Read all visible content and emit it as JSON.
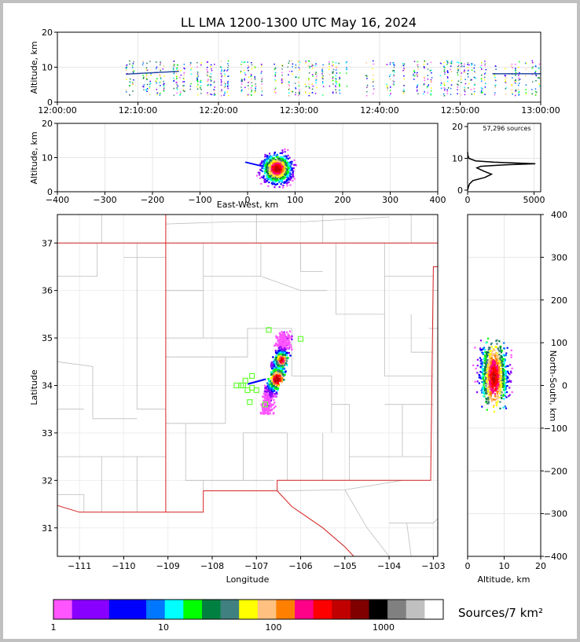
{
  "title": "LL LMA 1200-1300 UTC May 16, 2024",
  "time_panel": {
    "ylabel": "Altitude, km",
    "yticks": [
      "0",
      "10",
      "20"
    ],
    "xticks": [
      "12:00:00",
      "12:10:00",
      "12:20:00",
      "12:30:00",
      "12:40:00",
      "12:50:00",
      "13:00:00"
    ]
  },
  "ew_panel": {
    "ylabel": "Altitude, km",
    "xlabel": "East-West, km",
    "yticks": [
      "0",
      "10",
      "20"
    ],
    "xticks": [
      "−400",
      "−300",
      "−200",
      "−100",
      "0",
      "100",
      "200",
      "300",
      "400"
    ]
  },
  "hist_panel": {
    "count_label": "57,296 sources",
    "yticks": [
      "0",
      "10",
      "20"
    ],
    "xticks": [
      "0",
      "5000"
    ]
  },
  "map_panel": {
    "xlabel": "Longitude",
    "ylabel": "Latitude",
    "xticks": [
      "−111",
      "−110",
      "−109",
      "−108",
      "−107",
      "−106",
      "−105",
      "−104",
      "−103"
    ],
    "yticks": [
      "31",
      "32",
      "33",
      "34",
      "35",
      "36",
      "37"
    ]
  },
  "ns_panel": {
    "xlabel": "Altitude, km",
    "ylabel": "North-South, km",
    "xticks": [
      "0",
      "10",
      "20"
    ],
    "yticks": [
      "−400",
      "−300",
      "−200",
      "−100",
      "0",
      "100",
      "200",
      "300",
      "400"
    ]
  },
  "colorbar": {
    "label": "Sources/7 km²",
    "ticks": [
      "1",
      "10",
      "100",
      "1000"
    ],
    "colors": [
      "#ff55ff",
      "#8800ff",
      "#8800ff",
      "#0000ff",
      "#0000ff",
      "#0077ff",
      "#00ffff",
      "#00ff00",
      "#008040",
      "#408080",
      "#ffff00",
      "#ffc080",
      "#ff8000",
      "#ff0088",
      "#ff0000",
      "#c00000",
      "#800000",
      "#000000",
      "#808080",
      "#c0c0c0",
      "#ffffff"
    ]
  },
  "chart_data": [
    {
      "type": "scatter",
      "title": "LL LMA 1200-1300 UTC May 16, 2024",
      "panel": "altitude vs time",
      "xlim": [
        "12:00:00",
        "13:00:00"
      ],
      "ylim": [
        0,
        20
      ],
      "ylabel": "Altitude, km",
      "active_time_range": [
        "12:08:00",
        "13:00:00"
      ],
      "altitude_band_km": [
        2,
        12
      ]
    },
    {
      "type": "heatmap",
      "panel": "altitude vs east-west",
      "xlim": [
        -400,
        400
      ],
      "ylim": [
        0,
        20
      ],
      "xlabel": "East-West, km",
      "ylabel": "Altitude, km",
      "core_center_km": [
        60,
        7
      ]
    },
    {
      "type": "line",
      "panel": "altitude histogram",
      "xlim": [
        0,
        5500
      ],
      "ylim": [
        0,
        21
      ],
      "total_sources": 57296,
      "points": [
        [
          0,
          0
        ],
        [
          60,
          1
        ],
        [
          150,
          2
        ],
        [
          400,
          3
        ],
        [
          1300,
          4
        ],
        [
          1800,
          5
        ],
        [
          1200,
          6
        ],
        [
          700,
          7
        ],
        [
          1000,
          7.5
        ],
        [
          3000,
          8
        ],
        [
          5100,
          8.3
        ],
        [
          2000,
          8.8
        ],
        [
          600,
          9.2
        ],
        [
          100,
          10
        ],
        [
          20,
          11
        ],
        [
          0,
          12
        ]
      ]
    },
    {
      "type": "heatmap",
      "panel": "plan view",
      "xlim": [
        -111.5,
        -102.9
      ],
      "ylim": [
        30.4,
        37.6
      ],
      "xlabel": "Longitude",
      "ylabel": "Latitude"
    },
    {
      "type": "heatmap",
      "panel": "north-south vs altitude",
      "xlim": [
        0,
        20
      ],
      "ylim": [
        -400,
        400
      ],
      "xlabel": "Altitude, km",
      "ylabel": "North-South, km"
    }
  ]
}
